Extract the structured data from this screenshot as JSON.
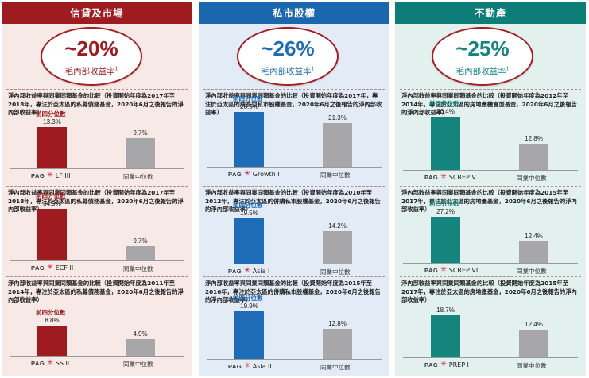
{
  "columns": [
    {
      "id": "credit",
      "header": "信貸及市場",
      "header_bg": "#9e1b20",
      "body_bg": "#f6e9e6",
      "accent": "#9e1b20",
      "pct": "~20%",
      "subtitle": "毛內部收益率",
      "sup": "1",
      "sections": [
        {
          "desc": "淨內部收益率與同業同類基金的比較（投資開始年度為2017年至2018年，專注於亞太區的私募債務基金，2020年6月之後報告的淨內部收益率）",
          "q_label": "前四分位數",
          "fund_value": "13.3%",
          "peer_value": "9.7%",
          "fund_name": "LF III",
          "peer_name": "同業中位數"
        },
        {
          "desc": "淨內部收益率與同業同類基金的比較（投資開始年度為2017年至2018年，專注於亞太區的私募債務基金，2020年6月之後報告的淨內部收益率）",
          "q_label": "前四分位數",
          "fund_value": "34.9%",
          "peer_value": "9.7%",
          "fund_name": "ECF II",
          "peer_name": "同業中位數"
        },
        {
          "desc": "淨內部收益率與同業同類基金的比較（投資開始年度為2011年至2014年，專注於亞太區的私募債務基金，2020年6月之後報告的淨內部收益率）",
          "q_label": "前四分位數",
          "fund_value": "8.8%",
          "peer_value": "4.9%",
          "fund_name": "SS II",
          "peer_name": "同業中位數"
        }
      ]
    },
    {
      "id": "pe",
      "header": "私市股權",
      "header_bg": "#1b67ae",
      "body_bg": "#e3ebf6",
      "accent": "#1e6bb8",
      "pct": "~26%",
      "subtitle": "毛內部收益率",
      "sup": "1",
      "sections": [
        {
          "desc": "淨內部收益率與同業同類基金的比較（投資開始年度為2017年，專注於亞太區的成長型私市股權基金，2020年6月之後報告的淨內部收益率）",
          "q_label": "前四分位數",
          "fund_value": "26.5%",
          "peer_value": "21.3%",
          "fund_name": "Growth I",
          "peer_name": "同業中位數"
        },
        {
          "desc": "淨內部收益率與同業同類基金的比較（投資開始年度為2010年至2012年，專注於亞太區的併購私市股權基金，2020年6月之後報告的淨內部收益率）",
          "q_label": "前四分位數",
          "fund_value": "19.5%",
          "peer_value": "14.2%",
          "fund_name": "Asia I",
          "peer_name": "同業中位數"
        },
        {
          "desc": "淨內部收益率與同業同類基金的比較（投資開始年度為2015年至2016年，專注於亞太區的併購私市股權基金，2020年6月之後報告的淨內部收益率）",
          "q_label": "前四分位數",
          "fund_value": "19.9%",
          "peer_value": "12.8%",
          "fund_name": "Asia II",
          "peer_name": "同業中位數"
        }
      ]
    },
    {
      "id": "re",
      "header": "不動產",
      "header_bg": "#0e7d77",
      "body_bg": "#e2f0ee",
      "accent": "#13857e",
      "pct": "~25%",
      "subtitle": "毛內部收益率",
      "sup": "1",
      "sections": [
        {
          "desc": "淨內部收益率與同業同類基金的比較（投資開始年度為2012年至2014年，專注於亞太區的房地產機會型基金，2020年6月之後報告的淨內部收益率）",
          "q_label": "前四分位數",
          "fund_value": "26.4%",
          "peer_value": "12.8%",
          "fund_name": "SCREP V",
          "peer_name": "同業中位數"
        },
        {
          "desc": "淨內部收益率與同業同類基金的比較（投資開始年度為2015年至2017年，專注於亞太區的房地產基金，2020年6月之後報告的淨內部收益率）",
          "q_label": "前四分位數",
          "fund_value": "27.2%",
          "peer_value": "12.4%",
          "fund_name": "SCREP VI",
          "peer_name": "同業中位數"
        },
        {
          "desc": "淨內部收益率與同業同類基金的比較（投資開始年度為2015年至2017年，專注於亞太區的房地產基金，2020年6月之後報告的淨內部收益率）",
          "q_label": "",
          "fund_value": "18.7%",
          "peer_value": "12.4%",
          "fund_name": "PREP I",
          "peer_name": "同業中位數"
        }
      ]
    }
  ],
  "logo_text": "PAG",
  "peer_bar_color": "#a7a7a9",
  "chart_data": [
    {
      "type": "bar",
      "categories": [
        "LF III",
        "同業中位數"
      ],
      "values": [
        13.3,
        9.7
      ]
    },
    {
      "type": "bar",
      "categories": [
        "ECF II",
        "同業中位數"
      ],
      "values": [
        34.9,
        9.7
      ]
    },
    {
      "type": "bar",
      "categories": [
        "SS II",
        "同業中位數"
      ],
      "values": [
        8.8,
        4.9
      ]
    },
    {
      "type": "bar",
      "categories": [
        "Growth I",
        "同業中位數"
      ],
      "values": [
        26.5,
        21.3
      ]
    },
    {
      "type": "bar",
      "categories": [
        "Asia I",
        "同業中位數"
      ],
      "values": [
        19.5,
        14.2
      ]
    },
    {
      "type": "bar",
      "categories": [
        "Asia II",
        "同業中位數"
      ],
      "values": [
        19.9,
        12.8
      ]
    },
    {
      "type": "bar",
      "categories": [
        "SCREP V",
        "同業中位數"
      ],
      "values": [
        26.4,
        12.8
      ]
    },
    {
      "type": "bar",
      "categories": [
        "SCREP VI",
        "同業中位數"
      ],
      "values": [
        27.2,
        12.4
      ]
    },
    {
      "type": "bar",
      "categories": [
        "PREP I",
        "同業中位數"
      ],
      "values": [
        18.7,
        12.4
      ]
    }
  ]
}
